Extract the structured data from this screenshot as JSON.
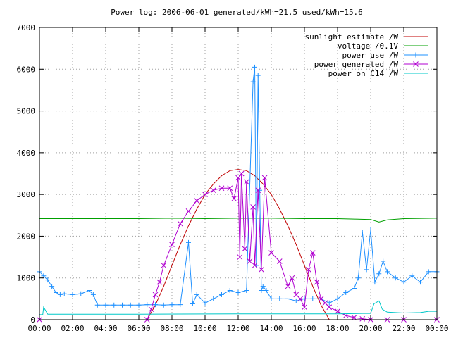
{
  "chart_data": {
    "type": "line",
    "title": "Power log: 2006-06-01 generated/kWh=21.5 used/kWh=15.6",
    "xlabel": "",
    "ylabel": "",
    "xlim": [
      0,
      24
    ],
    "ylim": [
      0,
      7000
    ],
    "x_ticks": [
      "00:00",
      "02:00",
      "04:00",
      "06:00",
      "08:00",
      "10:00",
      "12:00",
      "14:00",
      "16:00",
      "18:00",
      "20:00",
      "22:00",
      "00:00"
    ],
    "y_ticks": [
      "0",
      "1000",
      "2000",
      "3000",
      "4000",
      "5000",
      "6000",
      "7000"
    ],
    "grid": true,
    "legend_position": "top-right",
    "series": [
      {
        "name": "sunlight estimate /W",
        "color": "#c00000",
        "marker": "none",
        "x": [
          6.5,
          7,
          7.5,
          8,
          8.5,
          9,
          9.5,
          10,
          10.5,
          11,
          11.5,
          12,
          12.5,
          13,
          13.5,
          14,
          14.5,
          15,
          15.5,
          16,
          16.5,
          17,
          17.5
        ],
        "y": [
          0,
          350,
          800,
          1300,
          1800,
          2250,
          2650,
          3000,
          3250,
          3450,
          3570,
          3600,
          3570,
          3450,
          3250,
          3000,
          2650,
          2250,
          1800,
          1300,
          800,
          350,
          0
        ]
      },
      {
        "name": "voltage /0.1V",
        "color": "#00a000",
        "marker": "none",
        "x": [
          0,
          2,
          4,
          6,
          8,
          10,
          12,
          14,
          16,
          18,
          19,
          20,
          20.5,
          21,
          22,
          24
        ],
        "y": [
          2420,
          2420,
          2420,
          2420,
          2430,
          2420,
          2430,
          2430,
          2420,
          2420,
          2410,
          2400,
          2340,
          2390,
          2420,
          2430
        ]
      },
      {
        "name": "power use /W",
        "color": "#1e90ff",
        "marker": "plus",
        "x": [
          0,
          0.25,
          0.5,
          0.75,
          1.0,
          1.25,
          1.5,
          2.0,
          2.5,
          3.0,
          3.25,
          3.5,
          4.0,
          4.5,
          5.0,
          5.5,
          6.0,
          6.5,
          7.0,
          7.5,
          8.0,
          8.5,
          9.0,
          9.25,
          9.5,
          10.0,
          10.5,
          11.0,
          11.5,
          12.0,
          12.5,
          12.9,
          13.0,
          13.1,
          13.2,
          13.3,
          13.4,
          13.5,
          13.7,
          14.0,
          14.5,
          15.0,
          15.5,
          16.0,
          16.5,
          17.0,
          17.5,
          18.0,
          18.5,
          19.0,
          19.25,
          19.5,
          19.75,
          20.0,
          20.25,
          20.5,
          20.75,
          21.0,
          21.5,
          22.0,
          22.5,
          23.0,
          23.5,
          24.0
        ],
        "y": [
          1150,
          1050,
          950,
          800,
          650,
          600,
          620,
          600,
          620,
          700,
          600,
          350,
          350,
          350,
          350,
          350,
          350,
          360,
          360,
          350,
          360,
          360,
          1850,
          380,
          600,
          400,
          500,
          600,
          700,
          650,
          700,
          5700,
          6050,
          1300,
          5850,
          3100,
          700,
          800,
          700,
          500,
          500,
          500,
          450,
          500,
          500,
          500,
          400,
          500,
          650,
          750,
          1000,
          2100,
          1200,
          2150,
          900,
          1100,
          1400,
          1150,
          1000,
          900,
          1050,
          900,
          1150,
          1150
        ]
      },
      {
        "name": "power generated /W",
        "color": "#b000d0",
        "marker": "cross",
        "x": [
          0,
          6.5,
          6.75,
          7.0,
          7.25,
          7.5,
          8.0,
          8.5,
          9.0,
          9.5,
          10.0,
          10.5,
          11.0,
          11.5,
          11.75,
          12.0,
          12.1,
          12.2,
          12.4,
          12.5,
          12.7,
          12.9,
          13.0,
          13.2,
          13.4,
          13.6,
          14.0,
          14.5,
          15.0,
          15.25,
          15.5,
          15.75,
          16.0,
          16.25,
          16.5,
          16.75,
          17.0,
          17.25,
          17.5,
          18.0,
          18.5,
          19.0,
          19.5,
          20.0,
          21.0,
          22.0,
          24.0
        ],
        "y": [
          0,
          0,
          250,
          600,
          900,
          1300,
          1800,
          2300,
          2600,
          2850,
          3000,
          3100,
          3150,
          3150,
          2900,
          3400,
          1500,
          3500,
          1700,
          3300,
          1400,
          2700,
          1300,
          3100,
          1200,
          3400,
          1600,
          1400,
          800,
          1000,
          600,
          500,
          300,
          1200,
          1600,
          900,
          500,
          400,
          300,
          200,
          100,
          50,
          20,
          0,
          0,
          0,
          0
        ]
      },
      {
        "name": "power on C14 /W",
        "color": "#00c8c8",
        "marker": "none",
        "x": [
          0,
          0.2,
          0.25,
          0.5,
          6.0,
          12.0,
          18.0,
          19.5,
          20.0,
          20.2,
          20.5,
          20.7,
          21.0,
          22.0,
          23.0,
          23.5,
          24.0
        ],
        "y": [
          120,
          120,
          300,
          130,
          130,
          140,
          140,
          150,
          150,
          380,
          450,
          250,
          180,
          160,
          170,
          200,
          200
        ]
      }
    ]
  }
}
